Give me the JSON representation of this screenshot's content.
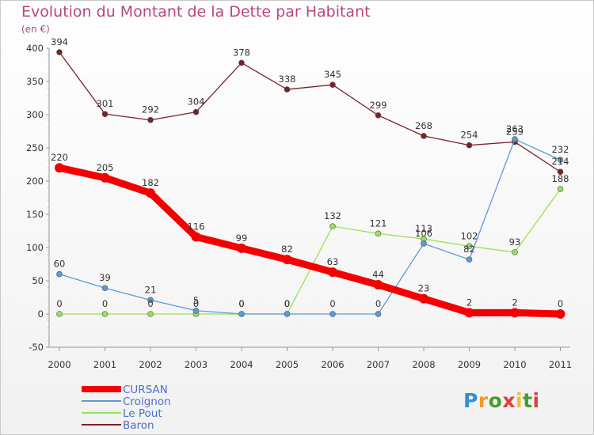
{
  "chart_data": {
    "type": "line",
    "title": "Evolution du Montant de la Dette par Habitant",
    "unit_label": "(en €)",
    "categories": [
      "2000",
      "2001",
      "2002",
      "2003",
      "2004",
      "2005",
      "2006",
      "2007",
      "2008",
      "2009",
      "2010",
      "2011"
    ],
    "ylim": [
      -50,
      400
    ],
    "yticks": [
      -50,
      0,
      50,
      100,
      150,
      200,
      250,
      300,
      350,
      400
    ],
    "grid": false,
    "legend_position": "bottom-left",
    "series": [
      {
        "name": "CURSAN",
        "color": "#f20000",
        "values": [
          220,
          205,
          182,
          116,
          99,
          82,
          63,
          44,
          23,
          2,
          2,
          0
        ]
      },
      {
        "name": "Croignon",
        "color": "#5b9bd5",
        "values": [
          60,
          39,
          21,
          5,
          0,
          0,
          0,
          0,
          106,
          82,
          263,
          232
        ]
      },
      {
        "name": "Le Pout",
        "color": "#99e05a",
        "values": [
          0,
          0,
          0,
          0,
          0,
          0,
          132,
          121,
          113,
          102,
          93,
          188
        ]
      },
      {
        "name": "Baron",
        "color": "#7a2228",
        "values": [
          394,
          301,
          292,
          304,
          378,
          338,
          345,
          299,
          268,
          254,
          259,
          214
        ]
      }
    ]
  },
  "logo": {
    "letters": [
      "P",
      "r",
      "o",
      "x",
      "i",
      "t",
      "i"
    ],
    "colors": [
      "#2f8fd8",
      "#f29b1c",
      "#4a9c2d",
      "#e53c3c",
      "#f2c12e",
      "#4a9c2d",
      "#e53c3c"
    ]
  }
}
